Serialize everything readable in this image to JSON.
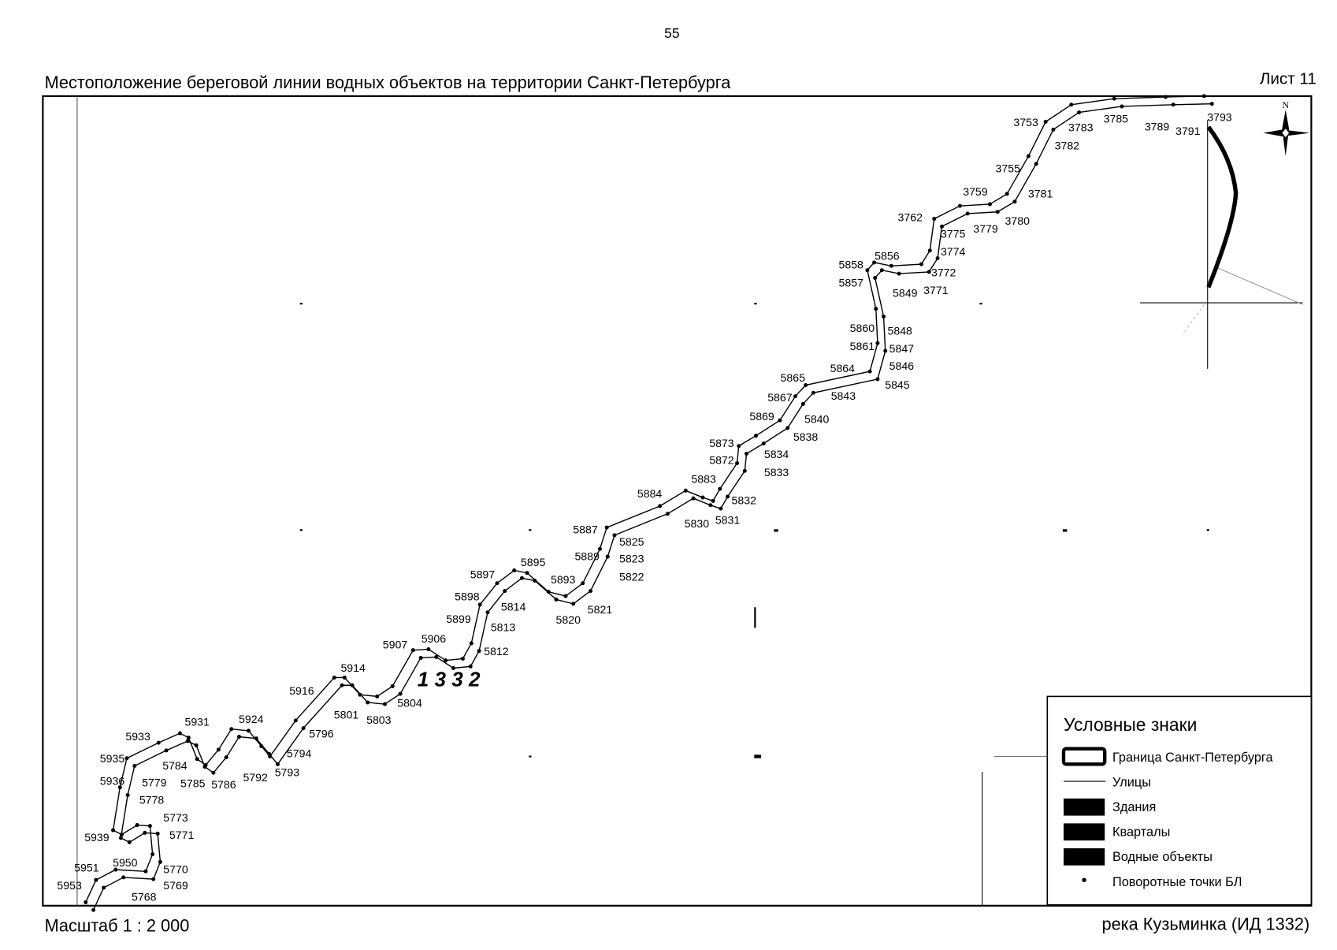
{
  "header": {
    "page_number": "55",
    "title": "Местоположение береговой линии водных объектов на территории Санкт-Петербурга",
    "sheet": "Лист 11"
  },
  "map": {
    "object_label": "1 3 3 2",
    "north_label": "N",
    "point_labels": [
      "3753",
      "3783",
      "3785",
      "3789",
      "3791",
      "3793",
      "3782",
      "3755",
      "3781",
      "3759",
      "3762",
      "3775",
      "3779",
      "3780",
      "3774",
      "5858",
      "5856",
      "3772",
      "5857",
      "5849",
      "3771",
      "5860",
      "5848",
      "5861",
      "5847",
      "5864",
      "5846",
      "5865",
      "5845",
      "5843",
      "5867",
      "5869",
      "5840",
      "5838",
      "5873",
      "5872",
      "5834",
      "5833",
      "5883",
      "5884",
      "5832",
      "5830",
      "5831",
      "5887",
      "5825",
      "5889",
      "5823",
      "5822",
      "5895",
      "5897",
      "5893",
      "5898",
      "5814",
      "5821",
      "5820",
      "5899",
      "5813",
      "5906",
      "5907",
      "5812",
      "5914",
      "5916",
      "5804",
      "5801",
      "5803",
      "5931",
      "5924",
      "5796",
      "5933",
      "5794",
      "5935",
      "5784",
      "5793",
      "5792",
      "5779",
      "5785",
      "5786",
      "5936",
      "5778",
      "5773",
      "5771",
      "5939",
      "5951",
      "5950",
      "5770",
      "5953",
      "5769",
      "5768"
    ]
  },
  "legend": {
    "title": "Условные знаки",
    "items": [
      "Граница Санкт-Петербурга",
      "Улицы",
      "Здания",
      "Кварталы",
      "Водные объекты",
      "Поворотные точки БЛ"
    ]
  },
  "footer": {
    "scale": "Масштаб 1 : 2 000",
    "river": "река Кузьминка (ИД 1332)"
  }
}
